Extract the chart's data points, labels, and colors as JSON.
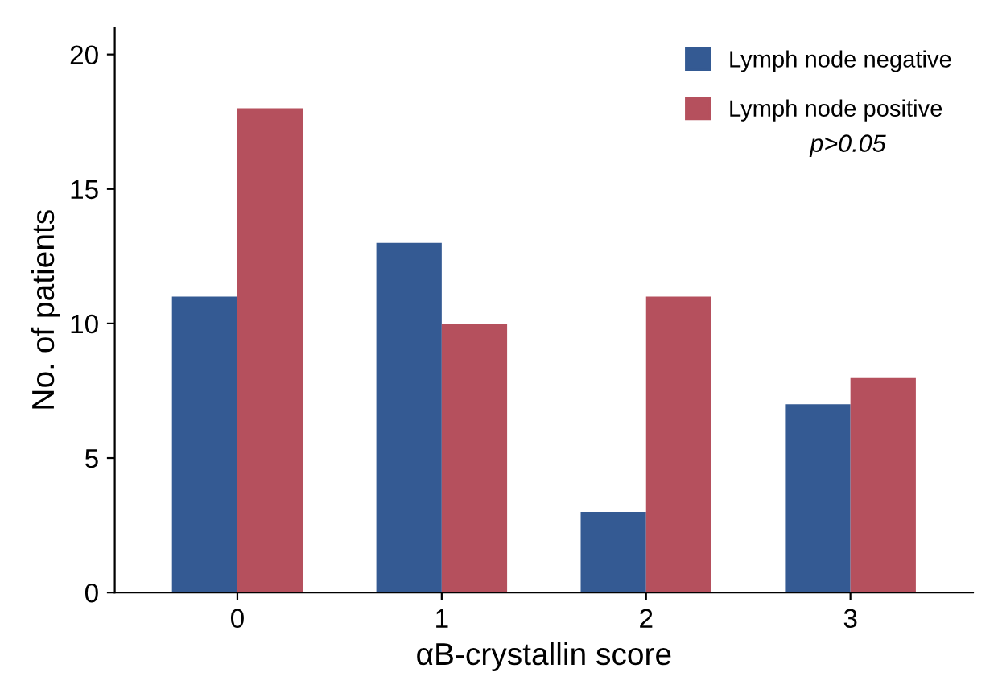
{
  "chart_data": {
    "type": "bar",
    "xlabel": "αB-crystallin score",
    "ylabel": "No. of patients",
    "categories": [
      "0",
      "1",
      "2",
      "3"
    ],
    "series": [
      {
        "name": "Lymph node negative",
        "color": "#345a93",
        "values": [
          11,
          13,
          3,
          7
        ]
      },
      {
        "name": "Lymph node positive",
        "color": "#b5505d",
        "values": [
          18,
          10,
          11,
          8
        ]
      }
    ],
    "ylim": [
      0,
      21
    ],
    "yticks": [
      0,
      5,
      10,
      15,
      20
    ],
    "grid": false,
    "legend": "top right",
    "annotations": [
      "p>0.05"
    ]
  }
}
